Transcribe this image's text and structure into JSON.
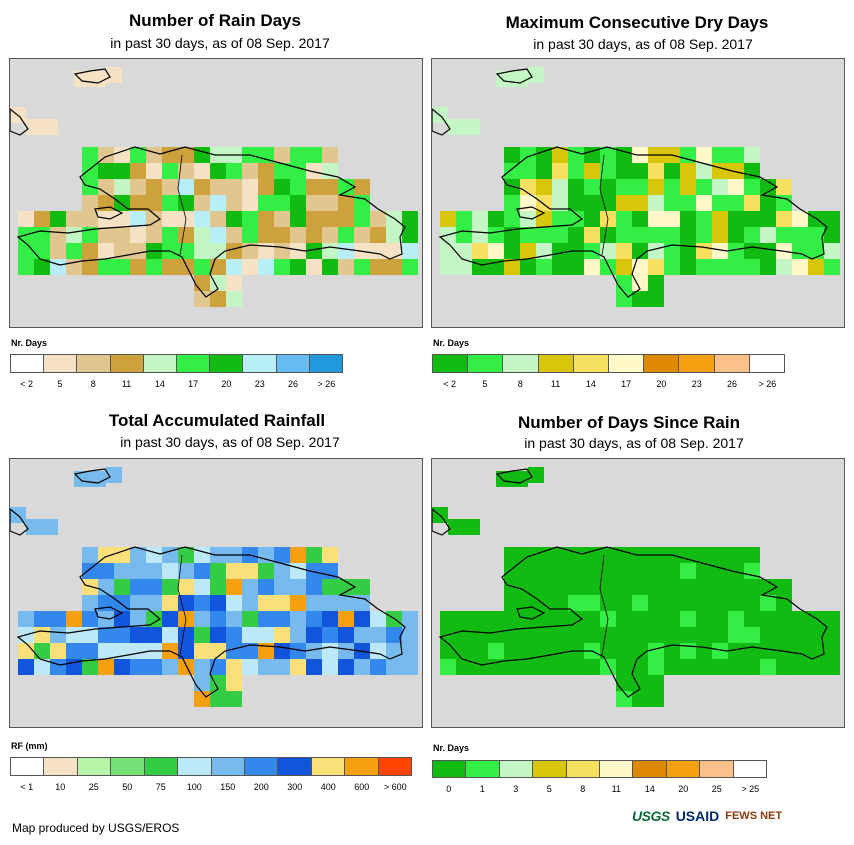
{
  "panels": [
    {
      "id": "rain_days",
      "title": "Number of Rain Days",
      "subtitle": "in past 30 days, as of 08 Sep. 2017",
      "legend_title": "Nr. Days",
      "legend_colors": [
        "#ffffff",
        "#f5e2c4",
        "#e2c690",
        "#cda23c",
        "#c4f5c4",
        "#33ee44",
        "#11bb11",
        "#b8eef8",
        "#66bbf2",
        "#2299dd"
      ],
      "legend_labels": [
        "< 2",
        "5",
        "8",
        "11",
        "14",
        "17",
        "20",
        "23",
        "26",
        "> 26"
      ]
    },
    {
      "id": "max_dry_days",
      "title": "Maximum Consecutive Dry Days",
      "subtitle": "in past 30 days, as of 08 Sep. 2017",
      "legend_title": "Nr. Days",
      "legend_colors": [
        "#11bb11",
        "#33ee44",
        "#c4f5c4",
        "#d8c60a",
        "#f7e060",
        "#fff8c8",
        "#dd8800",
        "#f5a010",
        "#f9c08a",
        "#ffffff"
      ],
      "legend_labels": [
        "< 2",
        "5",
        "8",
        "11",
        "14",
        "17",
        "20",
        "23",
        "26",
        "> 26"
      ]
    },
    {
      "id": "total_rainfall",
      "title": "Total Accumulated Rainfall",
      "subtitle": "in past 30 days, as of 08 Sep. 2017",
      "legend_title": "RF (mm)",
      "legend_colors": [
        "#ffffff",
        "#f5e2c4",
        "#b8f5a8",
        "#77e077",
        "#33cc44",
        "#bce8f8",
        "#77bbee",
        "#3388ee",
        "#1155dd",
        "#fbe07a",
        "#f5a010",
        "#ff4400"
      ],
      "legend_labels": [
        "< 1",
        "10",
        "25",
        "50",
        "75",
        "100",
        "150",
        "200",
        "300",
        "400",
        "600",
        "> 600"
      ]
    },
    {
      "id": "days_since_rain",
      "title": "Number of Days Since Rain",
      "subtitle": "in past 30 days, as of 08 Sep. 2017",
      "legend_title": "Nr. Days",
      "legend_colors": [
        "#11bb11",
        "#33ee44",
        "#c4f5c4",
        "#d8c60a",
        "#f7e060",
        "#fff8c8",
        "#dd8800",
        "#f5a010",
        "#f9c08a",
        "#ffffff"
      ],
      "legend_labels": [
        "0",
        "1",
        "3",
        "5",
        "8",
        "11",
        "14",
        "20",
        "25",
        "> 25"
      ]
    }
  ],
  "footer": "Map produced by USGS/EROS",
  "logos": [
    "USGS",
    "USAID",
    "FEWS NET"
  ],
  "colors": {
    "background_map": "#d9d9d9",
    "border": "#555555"
  }
}
